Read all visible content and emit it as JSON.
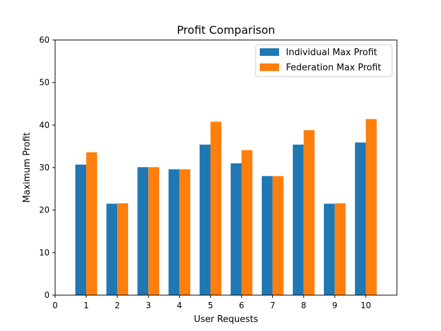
{
  "chart_data": {
    "type": "bar",
    "title": "Profit Comparison",
    "xlabel": "User Requests",
    "ylabel": "Maximum Profit",
    "categories": [
      1,
      2,
      3,
      4,
      5,
      6,
      7,
      8,
      9,
      10
    ],
    "xlim": [
      0,
      11
    ],
    "xticks": [
      0,
      1,
      2,
      3,
      4,
      5,
      6,
      7,
      8,
      9,
      10
    ],
    "ylim": [
      0,
      60
    ],
    "yticks": [
      0,
      10,
      20,
      30,
      40,
      50,
      60
    ],
    "grid": false,
    "legend_position": "top-right",
    "series": [
      {
        "name": "Individual Max Profit",
        "color": "#1f77b4",
        "values": [
          30.7,
          21.5,
          30.1,
          29.6,
          35.4,
          31.0,
          28.0,
          35.4,
          21.5,
          35.9
        ]
      },
      {
        "name": "Federation Max Profit",
        "color": "#ff7f0e",
        "values": [
          33.6,
          21.6,
          30.1,
          29.6,
          40.8,
          34.1,
          28.0,
          38.8,
          21.6,
          41.4
        ]
      }
    ]
  }
}
